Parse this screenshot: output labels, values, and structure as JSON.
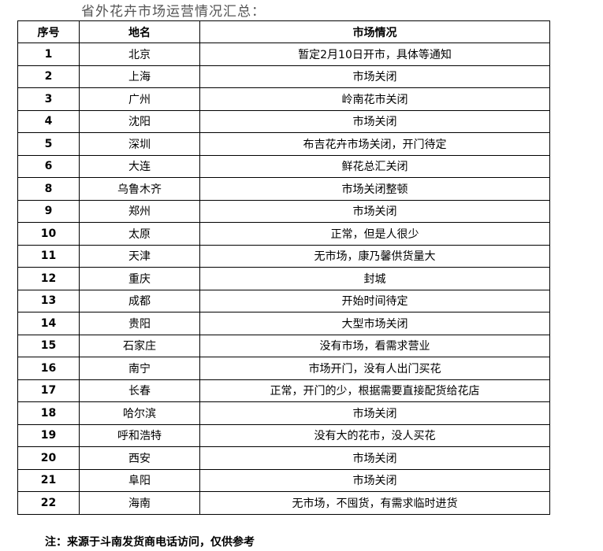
{
  "title": "省外花卉市场运营情况汇总：",
  "headers": [
    "序号",
    "地名",
    "市场情况"
  ],
  "rows": [
    [
      "1",
      "北京",
      "暂定2月10日开市，具体等通知"
    ],
    [
      "2",
      "上海",
      "市场关闭"
    ],
    [
      "3",
      "广州",
      "岭南花市关闭"
    ],
    [
      "4",
      "沈阳",
      "市场关闭"
    ],
    [
      "5",
      "深圳",
      "布吉花卉市场关闭，开门待定"
    ],
    [
      "6",
      "大连",
      "鲜花总汇关闭"
    ],
    [
      "8",
      "乌鲁木齐",
      "市场关闭整顿"
    ],
    [
      "9",
      "郑州",
      "市场关闭"
    ],
    [
      "10",
      "太原",
      "正常，但是人很少"
    ],
    [
      "11",
      "天津",
      "无市场，康乃馨供货量大"
    ],
    [
      "12",
      "重庆",
      "封城"
    ],
    [
      "13",
      "成都",
      "开始时间待定"
    ],
    [
      "14",
      "贵阳",
      "大型市场关闭"
    ],
    [
      "15",
      "石家庄",
      "没有市场，看需求营业"
    ],
    [
      "16",
      "南宁",
      "市场开门，没有人出门买花"
    ],
    [
      "17",
      "长春",
      "正常，开门的少，根据需要直接配货给花店"
    ],
    [
      "18",
      "哈尔滨",
      "市场关闭"
    ],
    [
      "19",
      "呼和浩特",
      "没有大的花市，没人买花"
    ],
    [
      "20",
      "西安",
      "市场关闭"
    ],
    [
      "21",
      "阜阳",
      "市场关闭"
    ],
    [
      "22",
      "海南",
      "无市场，不囤货，有需求临时进货"
    ]
  ],
  "note": "注：来源于斗南发货商电话访问，仅供参考"
}
